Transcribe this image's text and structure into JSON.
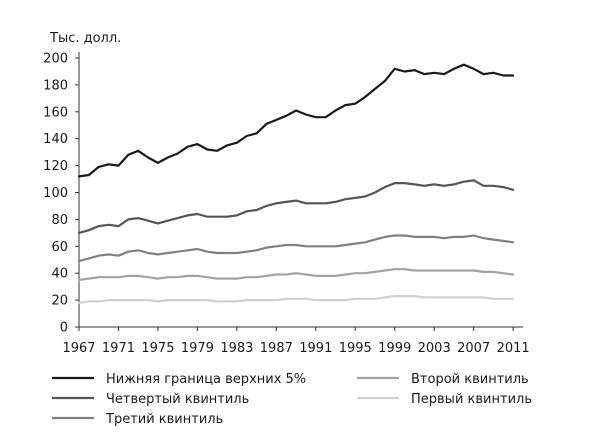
{
  "chart_data": {
    "type": "line",
    "ylabel": "Тыс. долл.",
    "xlabel": "",
    "title": "",
    "ylim": [
      0,
      200
    ],
    "yticks": [
      0,
      20,
      40,
      60,
      80,
      100,
      120,
      140,
      160,
      180,
      200
    ],
    "xlim": [
      1967,
      2012
    ],
    "xticks": [
      1967,
      1971,
      1975,
      1979,
      1983,
      1987,
      1991,
      1995,
      1999,
      2003,
      2007,
      2011
    ],
    "grid": false,
    "legend_position": "bottom",
    "x": [
      1967,
      1968,
      1969,
      1970,
      1971,
      1972,
      1973,
      1974,
      1975,
      1976,
      1977,
      1978,
      1979,
      1980,
      1981,
      1982,
      1983,
      1984,
      1985,
      1986,
      1987,
      1988,
      1989,
      1990,
      1991,
      1992,
      1993,
      1994,
      1995,
      1996,
      1997,
      1998,
      1999,
      2000,
      2001,
      2002,
      2003,
      2004,
      2005,
      2006,
      2007,
      2008,
      2009,
      2010,
      2011,
      2012
    ],
    "series": [
      {
        "name": "Нижняя граница верхних 5%",
        "color": "#1a1a1a",
        "values": [
          112,
          113,
          119,
          121,
          120,
          128,
          131,
          126,
          122,
          126,
          129,
          134,
          136,
          132,
          131,
          135,
          137,
          142,
          144,
          151,
          154,
          157,
          161,
          158,
          156,
          156,
          161,
          165,
          166,
          171,
          177,
          183,
          192,
          190,
          191,
          188,
          189,
          188,
          192,
          195,
          192,
          188,
          189,
          187,
          187,
          null
        ]
      },
      {
        "name": "Четвертый квинтиль",
        "color": "#555555",
        "values": [
          70,
          72,
          75,
          76,
          75,
          80,
          81,
          79,
          77,
          79,
          81,
          83,
          84,
          82,
          82,
          82,
          83,
          86,
          87,
          90,
          92,
          93,
          94,
          92,
          92,
          92,
          93,
          95,
          96,
          97,
          100,
          104,
          107,
          107,
          106,
          105,
          106,
          105,
          106,
          108,
          109,
          105,
          105,
          104,
          102,
          null
        ]
      },
      {
        "name": "Третий квинтиль",
        "color": "#808080",
        "values": [
          49,
          51,
          53,
          54,
          53,
          56,
          57,
          55,
          54,
          55,
          56,
          57,
          58,
          56,
          55,
          55,
          55,
          56,
          57,
          59,
          60,
          61,
          61,
          60,
          60,
          60,
          60,
          61,
          62,
          63,
          65,
          67,
          68,
          68,
          67,
          67,
          67,
          66,
          67,
          67,
          68,
          66,
          65,
          64,
          63,
          null
        ]
      },
      {
        "name": "Второй квинтиль",
        "color": "#a3a3a3",
        "values": [
          35,
          36,
          37,
          37,
          37,
          38,
          38,
          37,
          36,
          37,
          37,
          38,
          38,
          37,
          36,
          36,
          36,
          37,
          37,
          38,
          39,
          39,
          40,
          39,
          38,
          38,
          38,
          39,
          40,
          40,
          41,
          42,
          43,
          43,
          42,
          42,
          42,
          42,
          42,
          42,
          42,
          41,
          41,
          40,
          39,
          null
        ]
      },
      {
        "name": "Первый квинтиль",
        "color": "#cfcfcf",
        "values": [
          18,
          19,
          19,
          20,
          20,
          20,
          20,
          20,
          19,
          20,
          20,
          20,
          20,
          20,
          19,
          19,
          19,
          20,
          20,
          20,
          20,
          21,
          21,
          21,
          20,
          20,
          20,
          20,
          21,
          21,
          21,
          22,
          23,
          23,
          23,
          22,
          22,
          22,
          22,
          22,
          22,
          22,
          21,
          21,
          21,
          null
        ]
      }
    ]
  },
  "legend": [
    {
      "label": "Нижняя граница верхних 5%",
      "color": "#1a1a1a",
      "width": 2.2
    },
    {
      "label": "Второй квинтиль",
      "color": "#a3a3a3",
      "width": 2.2
    },
    {
      "label": "Четвертый квинтиль",
      "color": "#555555",
      "width": 2.2
    },
    {
      "label": "Первый квинтиль",
      "color": "#cfcfcf",
      "width": 2.2
    },
    {
      "label": "Третий квинтиль",
      "color": "#808080",
      "width": 2.2
    }
  ]
}
